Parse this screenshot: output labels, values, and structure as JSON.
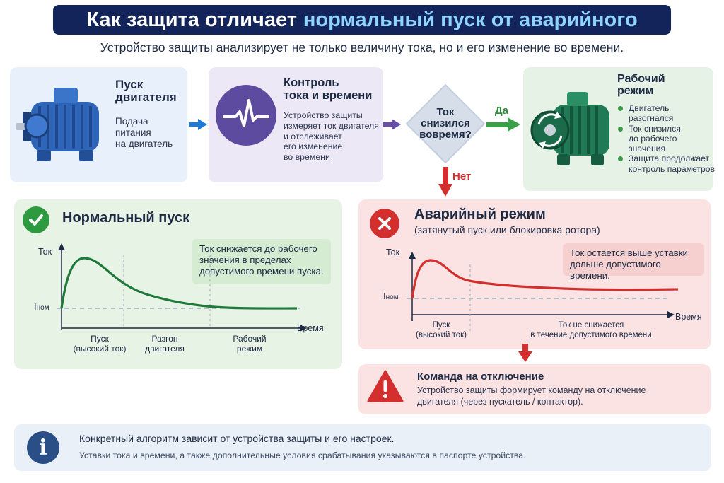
{
  "title": {
    "part1": "Как защита отличает",
    "part2": "нормальный пуск от аварийного"
  },
  "subtitle": "Устройство защиты анализирует не только величину тока, но и его изменение во времени.",
  "step_start": {
    "title_l1": "Пуск",
    "title_l2": "двигателя",
    "text_l1": "Подача",
    "text_l2": "питания",
    "text_l3": "на двигатель"
  },
  "step_control": {
    "title_l1": "Контроль",
    "title_l2": "тока и времени",
    "text_l1": "Устройство защиты",
    "text_l2": "измеряет ток двигателя",
    "text_l3": "и отслеживает",
    "text_l4": "его изменение",
    "text_l5": "во времени",
    "icon": "pulse-icon"
  },
  "decision": {
    "l1": "Ток",
    "l2": "снизился",
    "l3": "вовремя?",
    "yes": "Да",
    "no": "Нет"
  },
  "step_work": {
    "title_l1": "Рабочий",
    "title_l2": "режим",
    "b1_l1": "Двигатель",
    "b1_l2": "разогнался",
    "b2_l1": "Ток снизился",
    "b2_l2": "до рабочего",
    "b2_l3": "значения",
    "b3_l1": "Защита продолжает",
    "b3_l2": "контроль параметров"
  },
  "normal": {
    "title": "Нормальный пуск",
    "note_l1": "Ток снижается до рабочего",
    "note_l2": "значения в пределах",
    "note_l3": "допустимого времени пуска.",
    "y_label": "Ток",
    "x_label": "Время",
    "inom_main": "I",
    "inom_sub": "ном",
    "phase1_l1": "Пуск",
    "phase1_l2": "(высокий ток)",
    "phase2_l1": "Разгон",
    "phase2_l2": "двигателя",
    "phase3_l1": "Рабочий",
    "phase3_l2": "режим"
  },
  "fault": {
    "title": "Аварийный режим",
    "subtitle": "(затянутый пуск или блокировка ротора)",
    "note_l1": "Ток остается выше уставки",
    "note_l2": "дольше допустимого времени.",
    "y_label": "Ток",
    "x_label": "Время",
    "inom_main": "I",
    "inom_sub": "ном",
    "phase1_l1": "Пуск",
    "phase1_l2": "(высокий ток)",
    "phase2_l1": "Ток не снижается",
    "phase2_l2": "в течение допустимого времени"
  },
  "command": {
    "title": "Команда на отключение",
    "text_l1": "Устройство защиты формирует команду на отключение",
    "text_l2": "двигателя (через пускатель / контактор)."
  },
  "info": {
    "icon_text": "i",
    "title": "Конкретный алгоритм зависит от устройства защиты и его настроек.",
    "text": "Уставки тока и времени, а также дополнительные условия срабатывания указываются в паспорте устройства."
  },
  "colors": {
    "title_bg": "#13245a",
    "title_highlight": "#8fd3ff",
    "normal_curve": "#1f7a3a",
    "fault_curve": "#d32f2f",
    "blue_arrow": "#1e78d7",
    "purple_arrow": "#6a4fa8",
    "green_arrow": "#3aa04a",
    "red_arrow": "#d32f2f"
  }
}
